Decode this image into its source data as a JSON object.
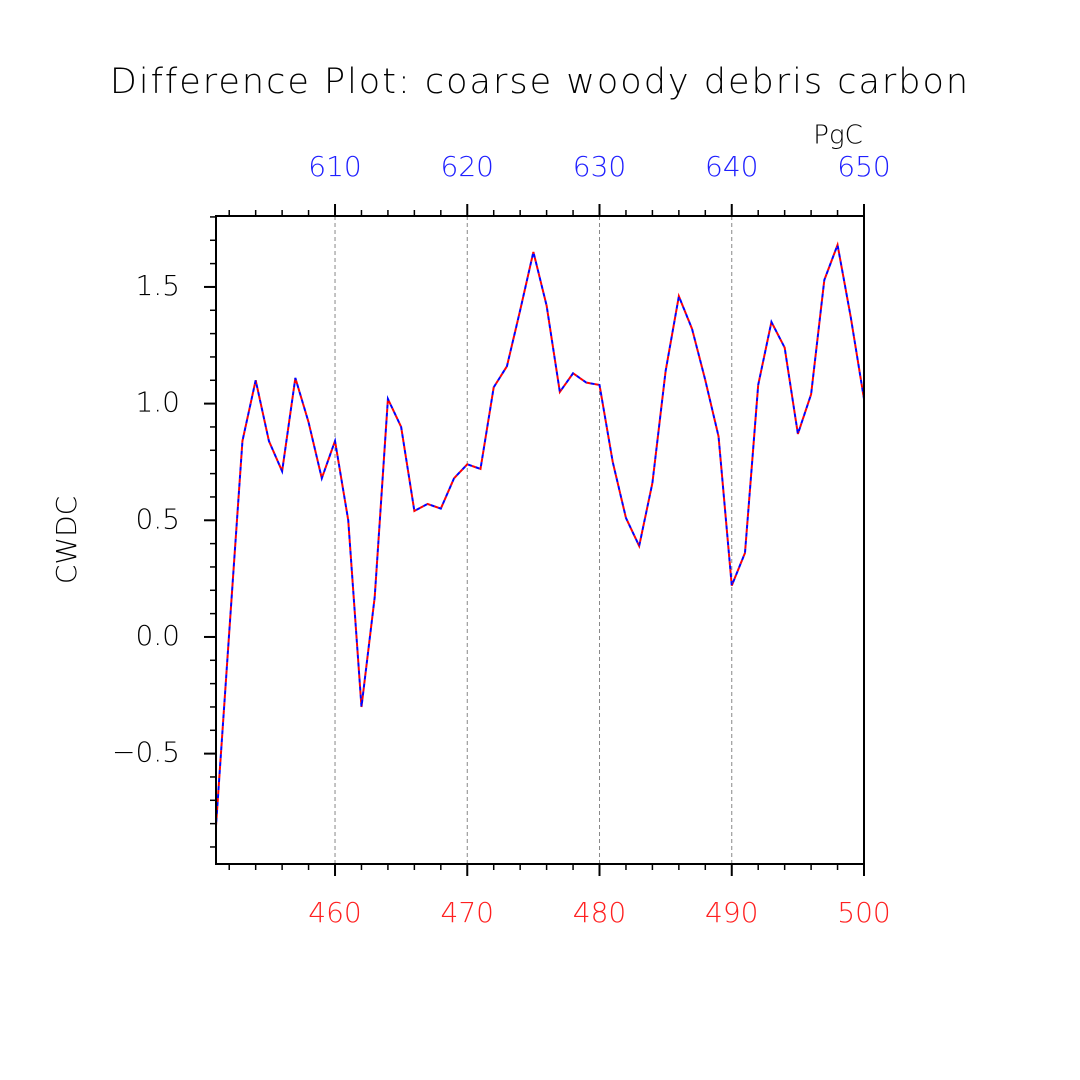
{
  "chart_data": {
    "type": "line",
    "title": "Difference Plot: coarse woody debris carbon",
    "ylabel": "CWDC",
    "x2label": "PgC",
    "x": [
      451,
      452,
      453,
      454,
      455,
      456,
      457,
      458,
      459,
      460,
      461,
      462,
      463,
      464,
      465,
      466,
      467,
      468,
      469,
      470,
      471,
      472,
      473,
      474,
      475,
      476,
      477,
      478,
      479,
      480,
      481,
      482,
      483,
      484,
      485,
      486,
      487,
      488,
      489,
      490,
      491,
      492,
      493,
      494,
      495,
      496,
      497,
      498,
      499,
      500
    ],
    "series": [
      {
        "color": "#ff0000",
        "values": [
          -0.81,
          0.02,
          0.84,
          1.1,
          0.84,
          0.71,
          1.11,
          0.92,
          0.68,
          0.84,
          0.5,
          -0.3,
          0.17,
          1.02,
          0.9,
          0.54,
          0.57,
          0.55,
          0.68,
          0.74,
          0.72,
          1.07,
          1.16,
          1.4,
          1.65,
          1.42,
          1.05,
          1.13,
          1.09,
          1.08,
          0.75,
          0.51,
          0.39,
          0.66,
          1.14,
          1.46,
          1.32,
          1.1,
          0.86,
          0.22,
          0.36,
          1.08,
          1.35,
          1.24,
          0.87,
          1.04,
          1.53,
          1.68,
          1.37,
          1.02
        ]
      },
      {
        "color": "#0000ff",
        "values": [
          -0.81,
          0.02,
          0.84,
          1.1,
          0.84,
          0.71,
          1.11,
          0.92,
          0.68,
          0.84,
          0.5,
          -0.3,
          0.17,
          1.02,
          0.9,
          0.54,
          0.57,
          0.55,
          0.68,
          0.74,
          0.72,
          1.07,
          1.16,
          1.4,
          1.65,
          1.42,
          1.05,
          1.13,
          1.09,
          1.08,
          0.75,
          0.51,
          0.39,
          0.66,
          1.14,
          1.46,
          1.32,
          1.1,
          0.86,
          0.22,
          0.36,
          1.08,
          1.35,
          1.24,
          0.87,
          1.04,
          1.53,
          1.68,
          1.37,
          1.02
        ]
      }
    ],
    "xlim": [
      451,
      500
    ],
    "xticks": [
      460,
      470,
      480,
      490,
      500
    ],
    "xtick_color": "#ff2020",
    "x2lim": [
      601,
      650
    ],
    "x2ticks": [
      610,
      620,
      630,
      640,
      650
    ],
    "x2tick_color": "#2020ff",
    "ylim": [
      -0.973,
      1.804
    ],
    "yticks": [
      {
        "value": -0.5,
        "label": "−0.5"
      },
      {
        "value": 0,
        "label": "0.0"
      },
      0.5,
      {
        "value": 1,
        "label": "1.0"
      },
      1.5
    ],
    "x_minor_step": 2,
    "y_minor_step": 0.1,
    "grid": "x"
  }
}
